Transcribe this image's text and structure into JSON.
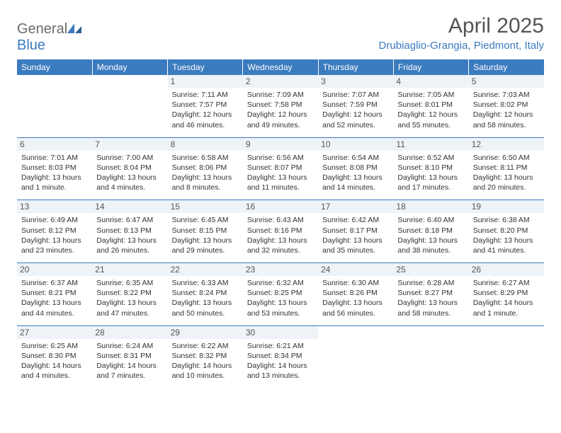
{
  "logo": {
    "text_general": "General",
    "text_blue": "Blue"
  },
  "header": {
    "month_title": "April 2025",
    "location": "Drubiaglio-Grangia, Piedmont, Italy"
  },
  "colors": {
    "header_bg": "#3b7bbf",
    "header_fg": "#ffffff",
    "daynum_bg": "#eef3f7",
    "border": "#3b7bbf"
  },
  "day_headers": [
    "Sunday",
    "Monday",
    "Tuesday",
    "Wednesday",
    "Thursday",
    "Friday",
    "Saturday"
  ],
  "weeks": [
    [
      {
        "num": "",
        "sunrise": "",
        "sunset": "",
        "daylight": ""
      },
      {
        "num": "",
        "sunrise": "",
        "sunset": "",
        "daylight": ""
      },
      {
        "num": "1",
        "sunrise": "Sunrise: 7:11 AM",
        "sunset": "Sunset: 7:57 PM",
        "daylight": "Daylight: 12 hours and 46 minutes."
      },
      {
        "num": "2",
        "sunrise": "Sunrise: 7:09 AM",
        "sunset": "Sunset: 7:58 PM",
        "daylight": "Daylight: 12 hours and 49 minutes."
      },
      {
        "num": "3",
        "sunrise": "Sunrise: 7:07 AM",
        "sunset": "Sunset: 7:59 PM",
        "daylight": "Daylight: 12 hours and 52 minutes."
      },
      {
        "num": "4",
        "sunrise": "Sunrise: 7:05 AM",
        "sunset": "Sunset: 8:01 PM",
        "daylight": "Daylight: 12 hours and 55 minutes."
      },
      {
        "num": "5",
        "sunrise": "Sunrise: 7:03 AM",
        "sunset": "Sunset: 8:02 PM",
        "daylight": "Daylight: 12 hours and 58 minutes."
      }
    ],
    [
      {
        "num": "6",
        "sunrise": "Sunrise: 7:01 AM",
        "sunset": "Sunset: 8:03 PM",
        "daylight": "Daylight: 13 hours and 1 minute."
      },
      {
        "num": "7",
        "sunrise": "Sunrise: 7:00 AM",
        "sunset": "Sunset: 8:04 PM",
        "daylight": "Daylight: 13 hours and 4 minutes."
      },
      {
        "num": "8",
        "sunrise": "Sunrise: 6:58 AM",
        "sunset": "Sunset: 8:06 PM",
        "daylight": "Daylight: 13 hours and 8 minutes."
      },
      {
        "num": "9",
        "sunrise": "Sunrise: 6:56 AM",
        "sunset": "Sunset: 8:07 PM",
        "daylight": "Daylight: 13 hours and 11 minutes."
      },
      {
        "num": "10",
        "sunrise": "Sunrise: 6:54 AM",
        "sunset": "Sunset: 8:08 PM",
        "daylight": "Daylight: 13 hours and 14 minutes."
      },
      {
        "num": "11",
        "sunrise": "Sunrise: 6:52 AM",
        "sunset": "Sunset: 8:10 PM",
        "daylight": "Daylight: 13 hours and 17 minutes."
      },
      {
        "num": "12",
        "sunrise": "Sunrise: 6:50 AM",
        "sunset": "Sunset: 8:11 PM",
        "daylight": "Daylight: 13 hours and 20 minutes."
      }
    ],
    [
      {
        "num": "13",
        "sunrise": "Sunrise: 6:49 AM",
        "sunset": "Sunset: 8:12 PM",
        "daylight": "Daylight: 13 hours and 23 minutes."
      },
      {
        "num": "14",
        "sunrise": "Sunrise: 6:47 AM",
        "sunset": "Sunset: 8:13 PM",
        "daylight": "Daylight: 13 hours and 26 minutes."
      },
      {
        "num": "15",
        "sunrise": "Sunrise: 6:45 AM",
        "sunset": "Sunset: 8:15 PM",
        "daylight": "Daylight: 13 hours and 29 minutes."
      },
      {
        "num": "16",
        "sunrise": "Sunrise: 6:43 AM",
        "sunset": "Sunset: 8:16 PM",
        "daylight": "Daylight: 13 hours and 32 minutes."
      },
      {
        "num": "17",
        "sunrise": "Sunrise: 6:42 AM",
        "sunset": "Sunset: 8:17 PM",
        "daylight": "Daylight: 13 hours and 35 minutes."
      },
      {
        "num": "18",
        "sunrise": "Sunrise: 6:40 AM",
        "sunset": "Sunset: 8:18 PM",
        "daylight": "Daylight: 13 hours and 38 minutes."
      },
      {
        "num": "19",
        "sunrise": "Sunrise: 6:38 AM",
        "sunset": "Sunset: 8:20 PM",
        "daylight": "Daylight: 13 hours and 41 minutes."
      }
    ],
    [
      {
        "num": "20",
        "sunrise": "Sunrise: 6:37 AM",
        "sunset": "Sunset: 8:21 PM",
        "daylight": "Daylight: 13 hours and 44 minutes."
      },
      {
        "num": "21",
        "sunrise": "Sunrise: 6:35 AM",
        "sunset": "Sunset: 8:22 PM",
        "daylight": "Daylight: 13 hours and 47 minutes."
      },
      {
        "num": "22",
        "sunrise": "Sunrise: 6:33 AM",
        "sunset": "Sunset: 8:24 PM",
        "daylight": "Daylight: 13 hours and 50 minutes."
      },
      {
        "num": "23",
        "sunrise": "Sunrise: 6:32 AM",
        "sunset": "Sunset: 8:25 PM",
        "daylight": "Daylight: 13 hours and 53 minutes."
      },
      {
        "num": "24",
        "sunrise": "Sunrise: 6:30 AM",
        "sunset": "Sunset: 8:26 PM",
        "daylight": "Daylight: 13 hours and 56 minutes."
      },
      {
        "num": "25",
        "sunrise": "Sunrise: 6:28 AM",
        "sunset": "Sunset: 8:27 PM",
        "daylight": "Daylight: 13 hours and 58 minutes."
      },
      {
        "num": "26",
        "sunrise": "Sunrise: 6:27 AM",
        "sunset": "Sunset: 8:29 PM",
        "daylight": "Daylight: 14 hours and 1 minute."
      }
    ],
    [
      {
        "num": "27",
        "sunrise": "Sunrise: 6:25 AM",
        "sunset": "Sunset: 8:30 PM",
        "daylight": "Daylight: 14 hours and 4 minutes."
      },
      {
        "num": "28",
        "sunrise": "Sunrise: 6:24 AM",
        "sunset": "Sunset: 8:31 PM",
        "daylight": "Daylight: 14 hours and 7 minutes."
      },
      {
        "num": "29",
        "sunrise": "Sunrise: 6:22 AM",
        "sunset": "Sunset: 8:32 PM",
        "daylight": "Daylight: 14 hours and 10 minutes."
      },
      {
        "num": "30",
        "sunrise": "Sunrise: 6:21 AM",
        "sunset": "Sunset: 8:34 PM",
        "daylight": "Daylight: 14 hours and 13 minutes."
      },
      {
        "num": "",
        "sunrise": "",
        "sunset": "",
        "daylight": ""
      },
      {
        "num": "",
        "sunrise": "",
        "sunset": "",
        "daylight": ""
      },
      {
        "num": "",
        "sunrise": "",
        "sunset": "",
        "daylight": ""
      }
    ]
  ]
}
